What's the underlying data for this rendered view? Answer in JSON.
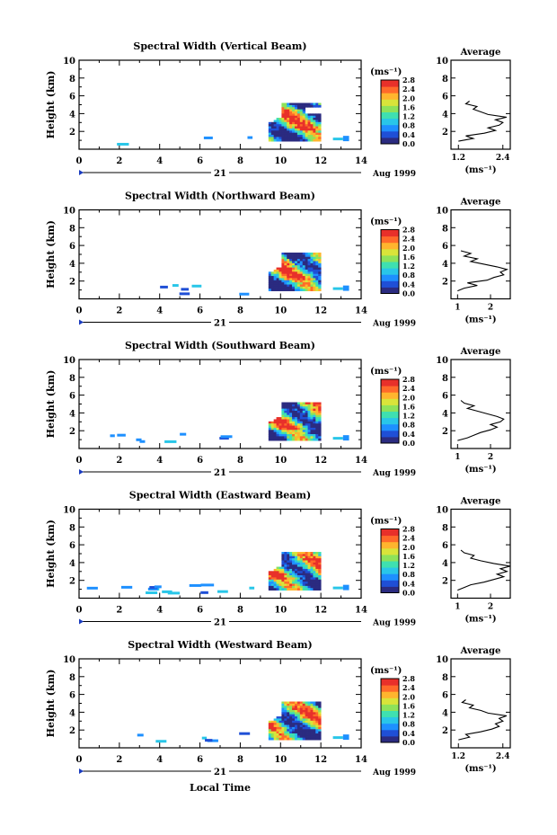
{
  "panels": [
    {
      "title": "Spectral Width (Vertical Beam)",
      "avg_xticks": [
        "1.2",
        "2.4"
      ],
      "avg_xlim": [
        1.0,
        2.6
      ]
    },
    {
      "title": "Spectral Width (Northward Beam)",
      "avg_xticks": [
        "1",
        "2"
      ],
      "avg_xlim": [
        0.8,
        2.6
      ]
    },
    {
      "title": "Spectral Width (Southward Beam)",
      "avg_xticks": [
        "1",
        "2"
      ],
      "avg_xlim": [
        0.8,
        2.6
      ]
    },
    {
      "title": "Spectral Width (Eastward Beam)",
      "avg_xticks": [
        "1",
        "2"
      ],
      "avg_xlim": [
        0.8,
        2.6
      ]
    },
    {
      "title": "Spectral Width (Westward Beam)",
      "avg_xticks": [
        "1.2",
        "2.4"
      ],
      "avg_xlim": [
        1.0,
        2.6
      ]
    }
  ],
  "common": {
    "ylabel": "Height (km)",
    "yticks": [
      "2",
      "4",
      "6",
      "8",
      "10"
    ],
    "xticks": [
      "0",
      "2",
      "4",
      "6",
      "8",
      "10",
      "12",
      "14"
    ],
    "day_label": "21",
    "month_label": "Aug 1999",
    "colorbar_unit": "(ms⁻¹)",
    "colorbar_ticks": [
      "0.0",
      "0.4",
      "0.8",
      "1.2",
      "1.6",
      "2.0",
      "2.4",
      "2.8"
    ],
    "avg_title": "Average",
    "avg_unit": "(ms⁻¹)",
    "avg_yticks": [
      "2",
      "4",
      "6",
      "8",
      "10"
    ],
    "xlabel": "Local Time"
  },
  "chart_data": {
    "type": "heatmap",
    "x_range_hours": [
      0,
      14
    ],
    "y_range_km": [
      0,
      10
    ],
    "colorbar_range": [
      0.0,
      2.8
    ],
    "colormap": [
      "#2b2b80",
      "#1f4fd6",
      "#1e90ff",
      "#29c6e8",
      "#3fe0b0",
      "#8ee25a",
      "#d9e43a",
      "#ffb52e",
      "#ff6a2a",
      "#e8302a"
    ],
    "main_block": {
      "x_start_hours": 9.4,
      "x_end_hours": 12.0,
      "y_top_km": 5.2,
      "y_bottom_km": 0.9
    },
    "average_profile": {
      "heights_km": [
        0.9,
        1.2,
        1.5,
        1.8,
        2.1,
        2.4,
        2.7,
        3.0,
        3.3,
        3.6,
        3.9,
        4.2,
        4.5,
        4.8,
        5.1,
        5.4
      ],
      "vertical_ms": [
        1.2,
        1.6,
        1.4,
        1.9,
        2.2,
        2.0,
        2.3,
        2.4,
        2.2,
        2.5,
        2.0,
        1.8,
        1.6,
        1.7,
        1.4,
        1.5
      ],
      "northward_ms": [
        1.0,
        1.2,
        1.6,
        1.3,
        1.9,
        2.1,
        2.4,
        2.3,
        2.5,
        2.2,
        1.8,
        1.4,
        1.6,
        1.2,
        1.4,
        1.1
      ],
      "southward_ms": [
        1.0,
        1.3,
        1.5,
        1.7,
        2.0,
        2.2,
        2.0,
        2.3,
        2.4,
        2.2,
        1.9,
        1.6,
        1.3,
        1.5,
        1.2,
        1.1
      ],
      "eastward_ms": [
        1.0,
        1.2,
        1.4,
        1.8,
        2.1,
        2.4,
        2.2,
        2.5,
        2.3,
        2.6,
        2.1,
        1.7,
        1.4,
        1.5,
        1.2,
        1.1
      ],
      "westward_ms": [
        1.2,
        1.5,
        1.4,
        1.8,
        2.1,
        2.3,
        2.2,
        2.4,
        2.3,
        2.5,
        2.0,
        1.8,
        1.5,
        1.6,
        1.3,
        1.4
      ]
    }
  }
}
